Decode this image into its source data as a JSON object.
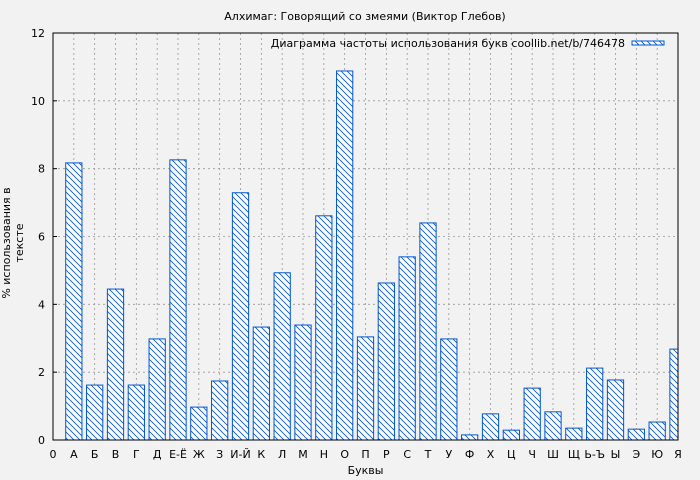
{
  "chart_data": {
    "type": "bar",
    "title": "Алхимаг: Говорящий со змеями (Виктор Глебов)",
    "xlabel": "Буквы",
    "ylabel": "% использования в тексте",
    "legend": {
      "label": "Диаграмма частоты использования букв coollib.net/b/746478",
      "placement": "top-right"
    },
    "xticks": [
      "0",
      "А",
      "Б",
      "В",
      "Г",
      "Д",
      "Е-Ё",
      "Ж",
      "З",
      "И-Й",
      "К",
      "Л",
      "М",
      "Н",
      "О",
      "П",
      "Р",
      "С",
      "Т",
      "У",
      "Ф",
      "Х",
      "Ц",
      "Ч",
      "Ш",
      "Щ",
      "Ь-Ъ",
      "Ы",
      "Э",
      "Ю",
      "Я"
    ],
    "categories": [
      "А",
      "Б",
      "В",
      "Г",
      "Д",
      "Е-Ё",
      "Ж",
      "З",
      "И-Й",
      "К",
      "Л",
      "М",
      "Н",
      "О",
      "П",
      "Р",
      "С",
      "Т",
      "У",
      "Ф",
      "Х",
      "Ц",
      "Ч",
      "Ш",
      "Щ",
      "Ь-Ъ",
      "Ы",
      "Э",
      "Ю",
      "Я"
    ],
    "values": [
      8.17,
      1.62,
      4.45,
      1.62,
      2.98,
      8.26,
      0.97,
      1.74,
      7.29,
      3.33,
      4.93,
      3.39,
      6.61,
      10.88,
      3.04,
      4.63,
      5.4,
      6.4,
      2.98,
      0.15,
      0.77,
      0.29,
      1.53,
      0.83,
      0.35,
      2.12,
      1.77,
      0.32,
      0.53,
      2.68
    ],
    "ylim": [
      0,
      12
    ],
    "yticks": [
      0,
      2,
      4,
      6,
      8,
      10,
      12
    ],
    "grid": true,
    "bar_color": "#0055cc",
    "hatch": "diagonal"
  }
}
